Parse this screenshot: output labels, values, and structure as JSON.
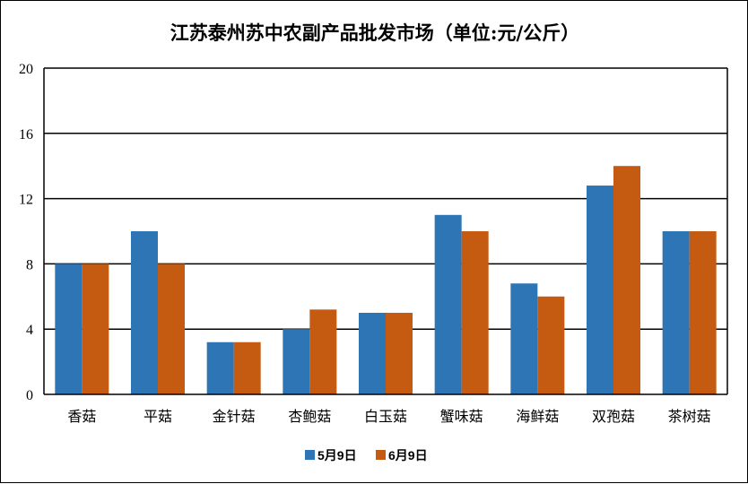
{
  "chart_data": {
    "type": "bar",
    "title": "江苏泰州苏中农副产品批发市场（单位:元/公斤）",
    "xlabel": "",
    "ylabel": "",
    "ylim": [
      0,
      20
    ],
    "yticks": [
      0,
      4,
      8,
      12,
      16,
      20
    ],
    "grid": true,
    "legend_position": "bottom",
    "categories": [
      "香菇",
      "平菇",
      "金针菇",
      "杏鲍菇",
      "白玉菇",
      "蟹味菇",
      "海鲜菇",
      "双孢菇",
      "茶树菇"
    ],
    "series": [
      {
        "name": "5月9日",
        "color": "#2E75B6",
        "values": [
          8,
          10,
          3.2,
          4,
          5,
          11,
          6.8,
          12.8,
          10
        ]
      },
      {
        "name": "6月9日",
        "color": "#C55A11",
        "values": [
          8,
          8,
          3.2,
          5.2,
          5,
          10,
          6,
          14,
          10
        ]
      }
    ]
  }
}
